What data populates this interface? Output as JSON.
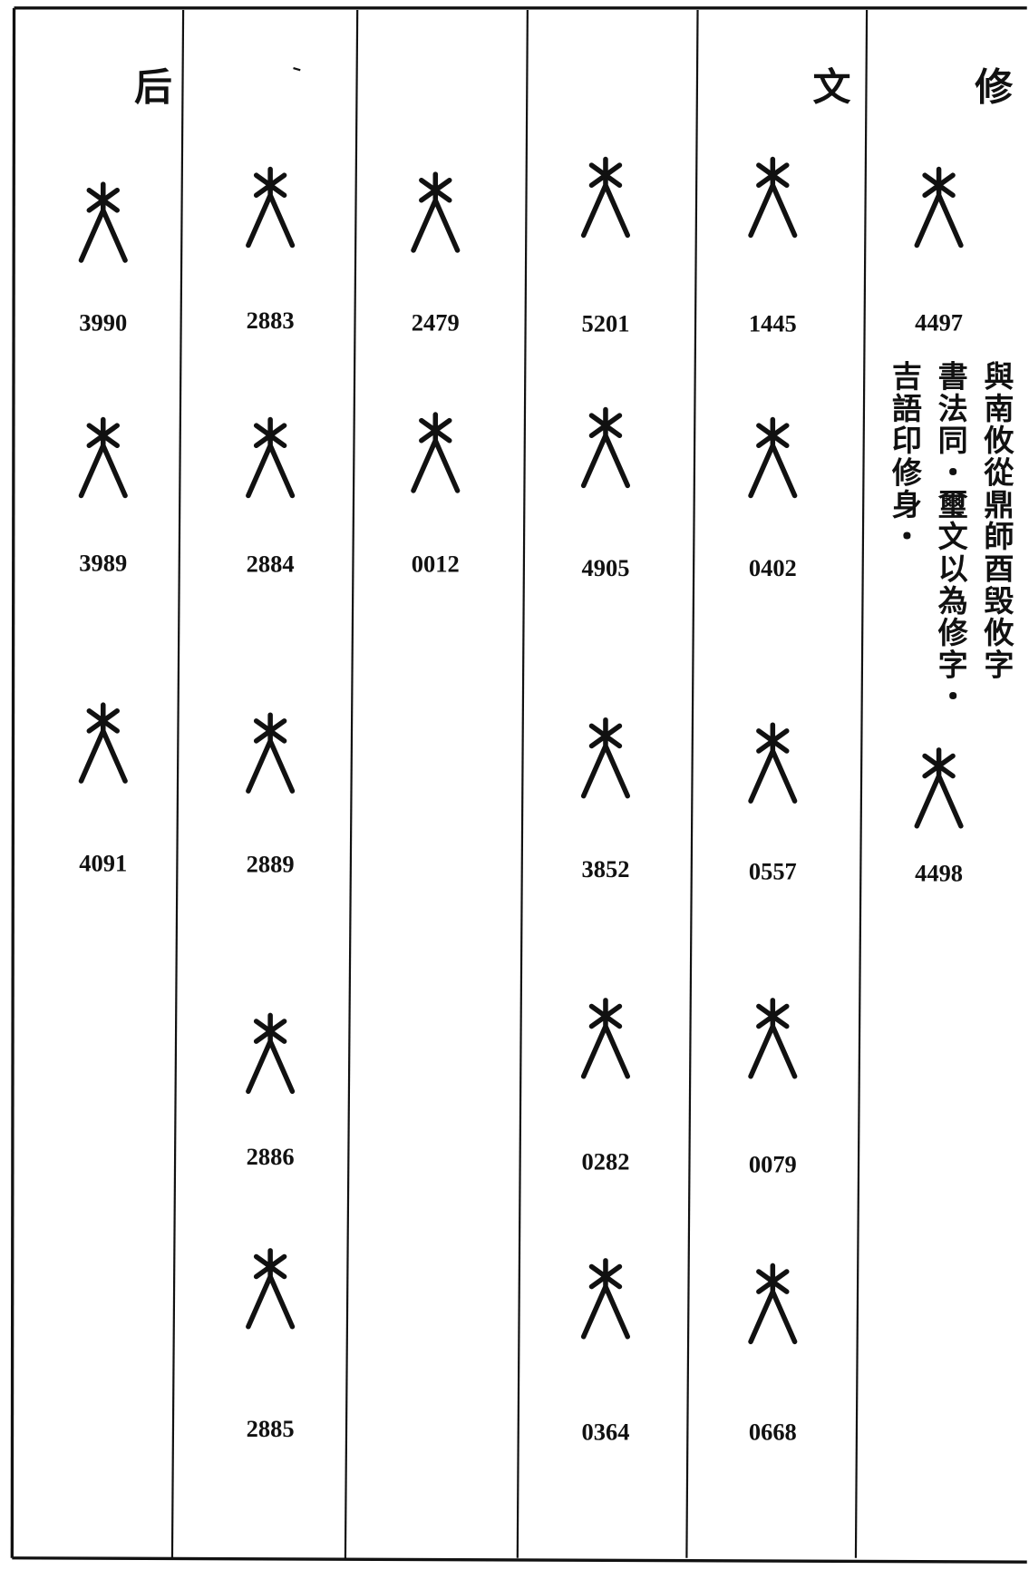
{
  "columns": [
    {
      "header": "修",
      "entries": [
        "4497",
        "4498"
      ],
      "note": [
        "與南攸從鼎師酉毁攸字",
        "書法同・璽文以為修字・",
        "吉語印修身・"
      ]
    },
    {
      "header": "文",
      "entries": [
        "1445",
        "0402",
        "0557",
        "0079",
        "0668"
      ]
    },
    {
      "entries": [
        "5201",
        "4905",
        "3852",
        "0282",
        "0364"
      ]
    },
    {
      "entries": [
        "2479",
        "0012"
      ]
    },
    {
      "entries": [
        "2883",
        "2884",
        "2889",
        "2886",
        "2885"
      ]
    },
    {
      "header": "后",
      "entries": [
        "3990",
        "3989",
        "4091"
      ]
    }
  ]
}
